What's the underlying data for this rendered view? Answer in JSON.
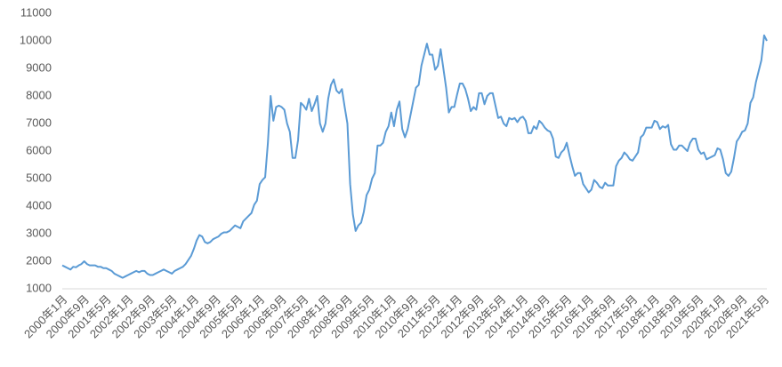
{
  "chart_data": {
    "type": "line",
    "categories": [
      "2000年1月",
      null,
      null,
      null,
      null,
      null,
      null,
      null,
      "2000年9月",
      null,
      null,
      null,
      null,
      null,
      null,
      null,
      "2001年5月",
      null,
      null,
      null,
      null,
      null,
      null,
      null,
      "2002年1月",
      null,
      null,
      null,
      null,
      null,
      null,
      null,
      "2002年9月",
      null,
      null,
      null,
      null,
      null,
      null,
      null,
      "2003年5月",
      null,
      null,
      null,
      null,
      null,
      null,
      null,
      "2004年1月",
      null,
      null,
      null,
      null,
      null,
      null,
      null,
      "2004年9月",
      null,
      null,
      null,
      null,
      null,
      null,
      null,
      "2005年5月",
      null,
      null,
      null,
      null,
      null,
      null,
      null,
      "2006年1月",
      null,
      null,
      null,
      null,
      null,
      null,
      null,
      "2006年9月",
      null,
      null,
      null,
      null,
      null,
      null,
      null,
      "2007年5月",
      null,
      null,
      null,
      null,
      null,
      null,
      null,
      "2008年1月",
      null,
      null,
      null,
      null,
      null,
      null,
      null,
      "2008年9月",
      null,
      null,
      null,
      null,
      null,
      null,
      null,
      "2009年5月",
      null,
      null,
      null,
      null,
      null,
      null,
      null,
      "2010年1月",
      null,
      null,
      null,
      null,
      null,
      null,
      null,
      "2010年9月",
      null,
      null,
      null,
      null,
      null,
      null,
      null,
      "2011年5月",
      null,
      null,
      null,
      null,
      null,
      null,
      null,
      "2012年1月",
      null,
      null,
      null,
      null,
      null,
      null,
      null,
      "2012年9月",
      null,
      null,
      null,
      null,
      null,
      null,
      null,
      "2013年5月",
      null,
      null,
      null,
      null,
      null,
      null,
      null,
      "2014年1月",
      null,
      null,
      null,
      null,
      null,
      null,
      null,
      "2014年9月",
      null,
      null,
      null,
      null,
      null,
      null,
      null,
      "2015年5月",
      null,
      null,
      null,
      null,
      null,
      null,
      null,
      "2016年1月",
      null,
      null,
      null,
      null,
      null,
      null,
      null,
      "2016年9月",
      null,
      null,
      null,
      null,
      null,
      null,
      null,
      "2017年5月",
      null,
      null,
      null,
      null,
      null,
      null,
      null,
      "2018年1月",
      null,
      null,
      null,
      null,
      null,
      null,
      null,
      "2018年9月",
      null,
      null,
      null,
      null,
      null,
      null,
      null,
      "2019年5月",
      null,
      null,
      null,
      null,
      null,
      null,
      null,
      "2020年1月",
      null,
      null,
      null,
      null,
      null,
      null,
      null,
      "2020年9月",
      null,
      null,
      null,
      null,
      null,
      null,
      null,
      "2021年5月",
      null
    ],
    "values": [
      1850,
      1800,
      1750,
      1700,
      1800,
      1780,
      1850,
      1900,
      2000,
      1900,
      1850,
      1850,
      1850,
      1800,
      1800,
      1750,
      1750,
      1700,
      1650,
      1550,
      1500,
      1450,
      1400,
      1450,
      1500,
      1550,
      1600,
      1650,
      1600,
      1650,
      1650,
      1550,
      1500,
      1500,
      1550,
      1600,
      1650,
      1700,
      1650,
      1600,
      1550,
      1650,
      1700,
      1750,
      1800,
      1900,
      2050,
      2200,
      2450,
      2750,
      2950,
      2900,
      2700,
      2650,
      2700,
      2800,
      2850,
      2900,
      3000,
      3050,
      3050,
      3100,
      3200,
      3300,
      3250,
      3200,
      3450,
      3550,
      3650,
      3750,
      4050,
      4200,
      4800,
      4950,
      5050,
      6300,
      8000,
      7100,
      7600,
      7650,
      7600,
      7500,
      7000,
      6700,
      5750,
      5750,
      6400,
      7750,
      7650,
      7500,
      7900,
      7450,
      7700,
      8000,
      7000,
      6700,
      7000,
      7900,
      8400,
      8600,
      8200,
      8100,
      8250,
      7600,
      7000,
      4800,
      3700,
      3100,
      3300,
      3400,
      3800,
      4400,
      4600,
      5000,
      5200,
      6200,
      6200,
      6300,
      6700,
      6900,
      7400,
      6900,
      7500,
      7800,
      6800,
      6500,
      6800,
      7300,
      7800,
      8300,
      8400,
      9100,
      9500,
      9900,
      9500,
      9500,
      8950,
      9100,
      9700,
      9000,
      8300,
      7400,
      7600,
      7600,
      8050,
      8450,
      8450,
      8250,
      7900,
      7450,
      7600,
      7500,
      8100,
      8100,
      7700,
      8000,
      8100,
      8100,
      7650,
      7200,
      7250,
      7000,
      6900,
      7200,
      7150,
      7200,
      7050,
      7200,
      7250,
      7100,
      6650,
      6650,
      6900,
      6800,
      7100,
      7000,
      6850,
      6750,
      6700,
      6450,
      5800,
      5750,
      5950,
      6050,
      6300,
      5850,
      5450,
      5100,
      5200,
      5200,
      4800,
      4650,
      4500,
      4600,
      4950,
      4850,
      4700,
      4650,
      4850,
      4750,
      4750,
      4750,
      5450,
      5650,
      5750,
      5950,
      5850,
      5700,
      5650,
      5800,
      5950,
      6500,
      6600,
      6850,
      6850,
      6850,
      7100,
      7050,
      6800,
      6900,
      6850,
      6950,
      6250,
      6050,
      6050,
      6200,
      6200,
      6100,
      6000,
      6300,
      6450,
      6450,
      6050,
      5900,
      5950,
      5700,
      5750,
      5800,
      5850,
      6100,
      6050,
      5700,
      5200,
      5100,
      5250,
      5750,
      6350,
      6500,
      6700,
      6750,
      7000,
      7750,
      7950,
      8500,
      8900,
      9300,
      10200,
      10000
    ],
    "color": "#5b9bd5",
    "ylim": [
      1000,
      11000
    ],
    "yticks": [
      1000,
      2000,
      3000,
      4000,
      5000,
      6000,
      7000,
      8000,
      9000,
      10000,
      11000
    ]
  }
}
